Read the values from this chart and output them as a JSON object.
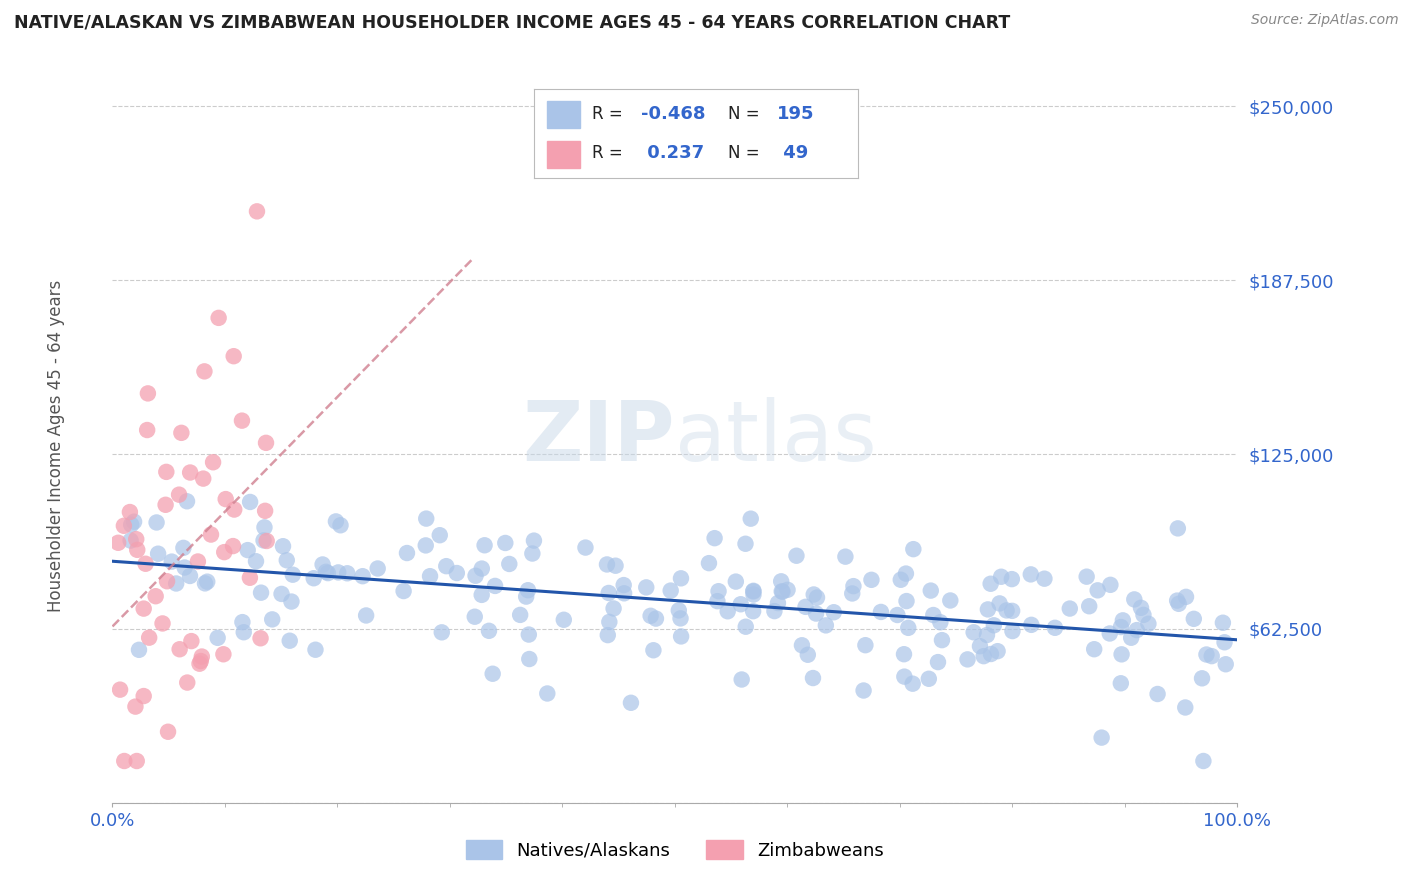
{
  "title": "NATIVE/ALASKAN VS ZIMBABWEAN HOUSEHOLDER INCOME AGES 45 - 64 YEARS CORRELATION CHART",
  "source_text": "Source: ZipAtlas.com",
  "ylabel": "Householder Income Ages 45 - 64 years",
  "xlim": [
    0,
    1.0
  ],
  "ylim": [
    0,
    262500
  ],
  "yticks": [
    0,
    62500,
    125000,
    187500,
    250000
  ],
  "ytick_labels": [
    "",
    "$62,500",
    "$125,000",
    "$187,500",
    "$250,000"
  ],
  "xtick_labels": [
    "0.0%",
    "100.0%"
  ],
  "bg_color": "#ffffff",
  "grid_color": "#cccccc",
  "blue_color": "#aac4e8",
  "pink_color": "#f4a0b0",
  "trend_blue": "#2255aa",
  "trend_pink": "#d08090",
  "label_color": "#3366cc",
  "legend_R_blue": "-0.468",
  "legend_N_blue": "195",
  "legend_R_pink": "0.237",
  "legend_N_pink": "49",
  "seed": 1234
}
